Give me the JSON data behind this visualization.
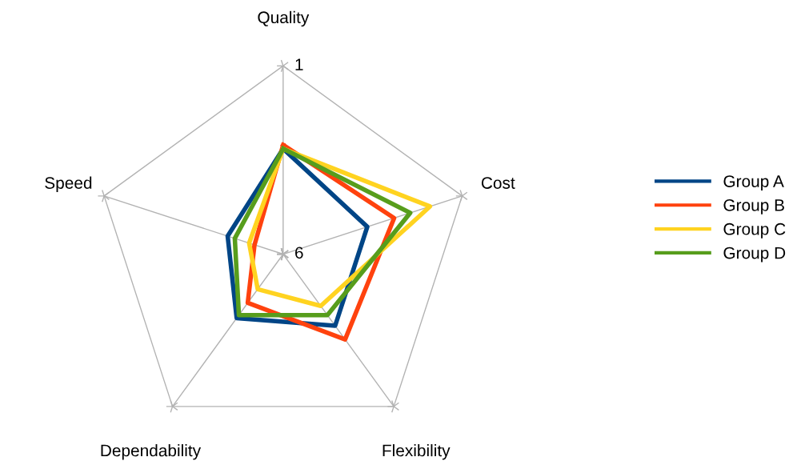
{
  "chart_data": {
    "type": "radar",
    "categories": [
      "Quality",
      "Cost",
      "Flexibility",
      "Dependability",
      "Speed"
    ],
    "ylim": [
      6,
      1
    ],
    "yticks": [
      1,
      6
    ],
    "grid": true,
    "legend": "right",
    "series": [
      {
        "name": "Group A",
        "color": "#004586",
        "values": [
          3.2,
          3.65,
          3.65,
          3.9,
          4.45
        ]
      },
      {
        "name": "Group B",
        "color": "#ff420e",
        "values": [
          3.1,
          2.9,
          3.2,
          4.4,
          5.2
        ]
      },
      {
        "name": "Group C",
        "color": "#ffd320",
        "values": [
          3.2,
          1.9,
          4.3,
          4.85,
          5.05
        ]
      },
      {
        "name": "Group D",
        "color": "#579d1c",
        "values": [
          3.2,
          2.45,
          4.0,
          4.0,
          4.65
        ]
      }
    ]
  }
}
